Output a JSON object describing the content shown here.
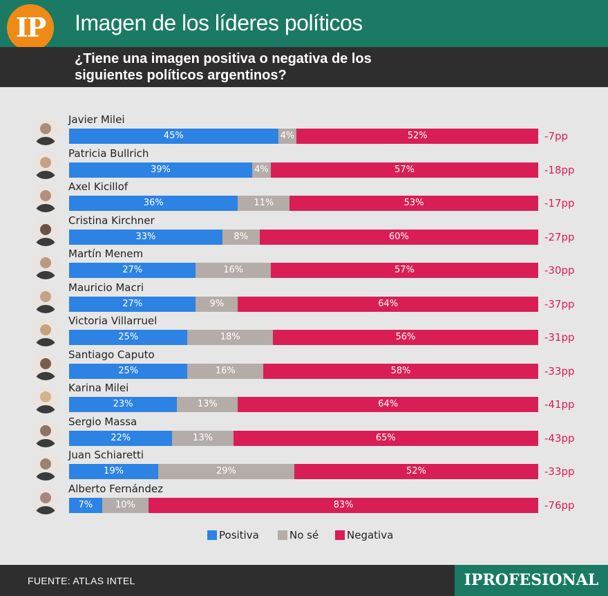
{
  "header": {
    "logo": "IP",
    "title": "Imagen de los líderes políticos",
    "subtitle": "¿Tiene una imagen positiva o negativa de los siguientes políticos argentinos?"
  },
  "chart_data": {
    "type": "bar",
    "orientation": "horizontal-stacked-100",
    "title": "Imagen de los líderes políticos",
    "subtitle": "¿Tiene una imagen positiva o negativa de los siguientes políticos argentinos?",
    "categories": [
      "Javier Milei",
      "Patricia Bullrich",
      "Axel Kicillof",
      "Cristina Kirchner",
      "Martín Menem",
      "Mauricio Macri",
      "Victoria Villarruel",
      "Santiago Caputo",
      "Karina Milei",
      "Sergio Massa",
      "Juan Schiaretti",
      "Alberto Fernández"
    ],
    "series": [
      {
        "name": "Positiva",
        "color": "#2c83e3",
        "values": [
          45,
          39,
          36,
          33,
          27,
          27,
          25,
          25,
          23,
          22,
          19,
          7
        ]
      },
      {
        "name": "No sé",
        "color": "#b4aca8",
        "values": [
          4,
          4,
          11,
          8,
          16,
          9,
          18,
          16,
          13,
          13,
          29,
          10
        ]
      },
      {
        "name": "Negativa",
        "color": "#d81e55",
        "values": [
          52,
          57,
          53,
          60,
          57,
          64,
          56,
          58,
          64,
          65,
          52,
          83
        ]
      }
    ],
    "differences": [
      "-7pp",
      "-18pp",
      "-17pp",
      "-27pp",
      "-30pp",
      "-37pp",
      "-31pp",
      "-33pp",
      "-41pp",
      "-43pp",
      "-33pp",
      "-76pp"
    ],
    "avatar_colors": [
      "#a98f7a",
      "#c8a280",
      "#b4907a",
      "#6a5246",
      "#b89a82",
      "#c0a488",
      "#c4a27e",
      "#7a5c4a",
      "#d4b48a",
      "#8e7262",
      "#9a8272",
      "#a4887a"
    ],
    "legend_position": "bottom-center",
    "xlim": [
      0,
      100
    ]
  },
  "footer": {
    "source": "FUENTE: ATLAS INTEL",
    "brand": "IPROFESIONAL"
  }
}
